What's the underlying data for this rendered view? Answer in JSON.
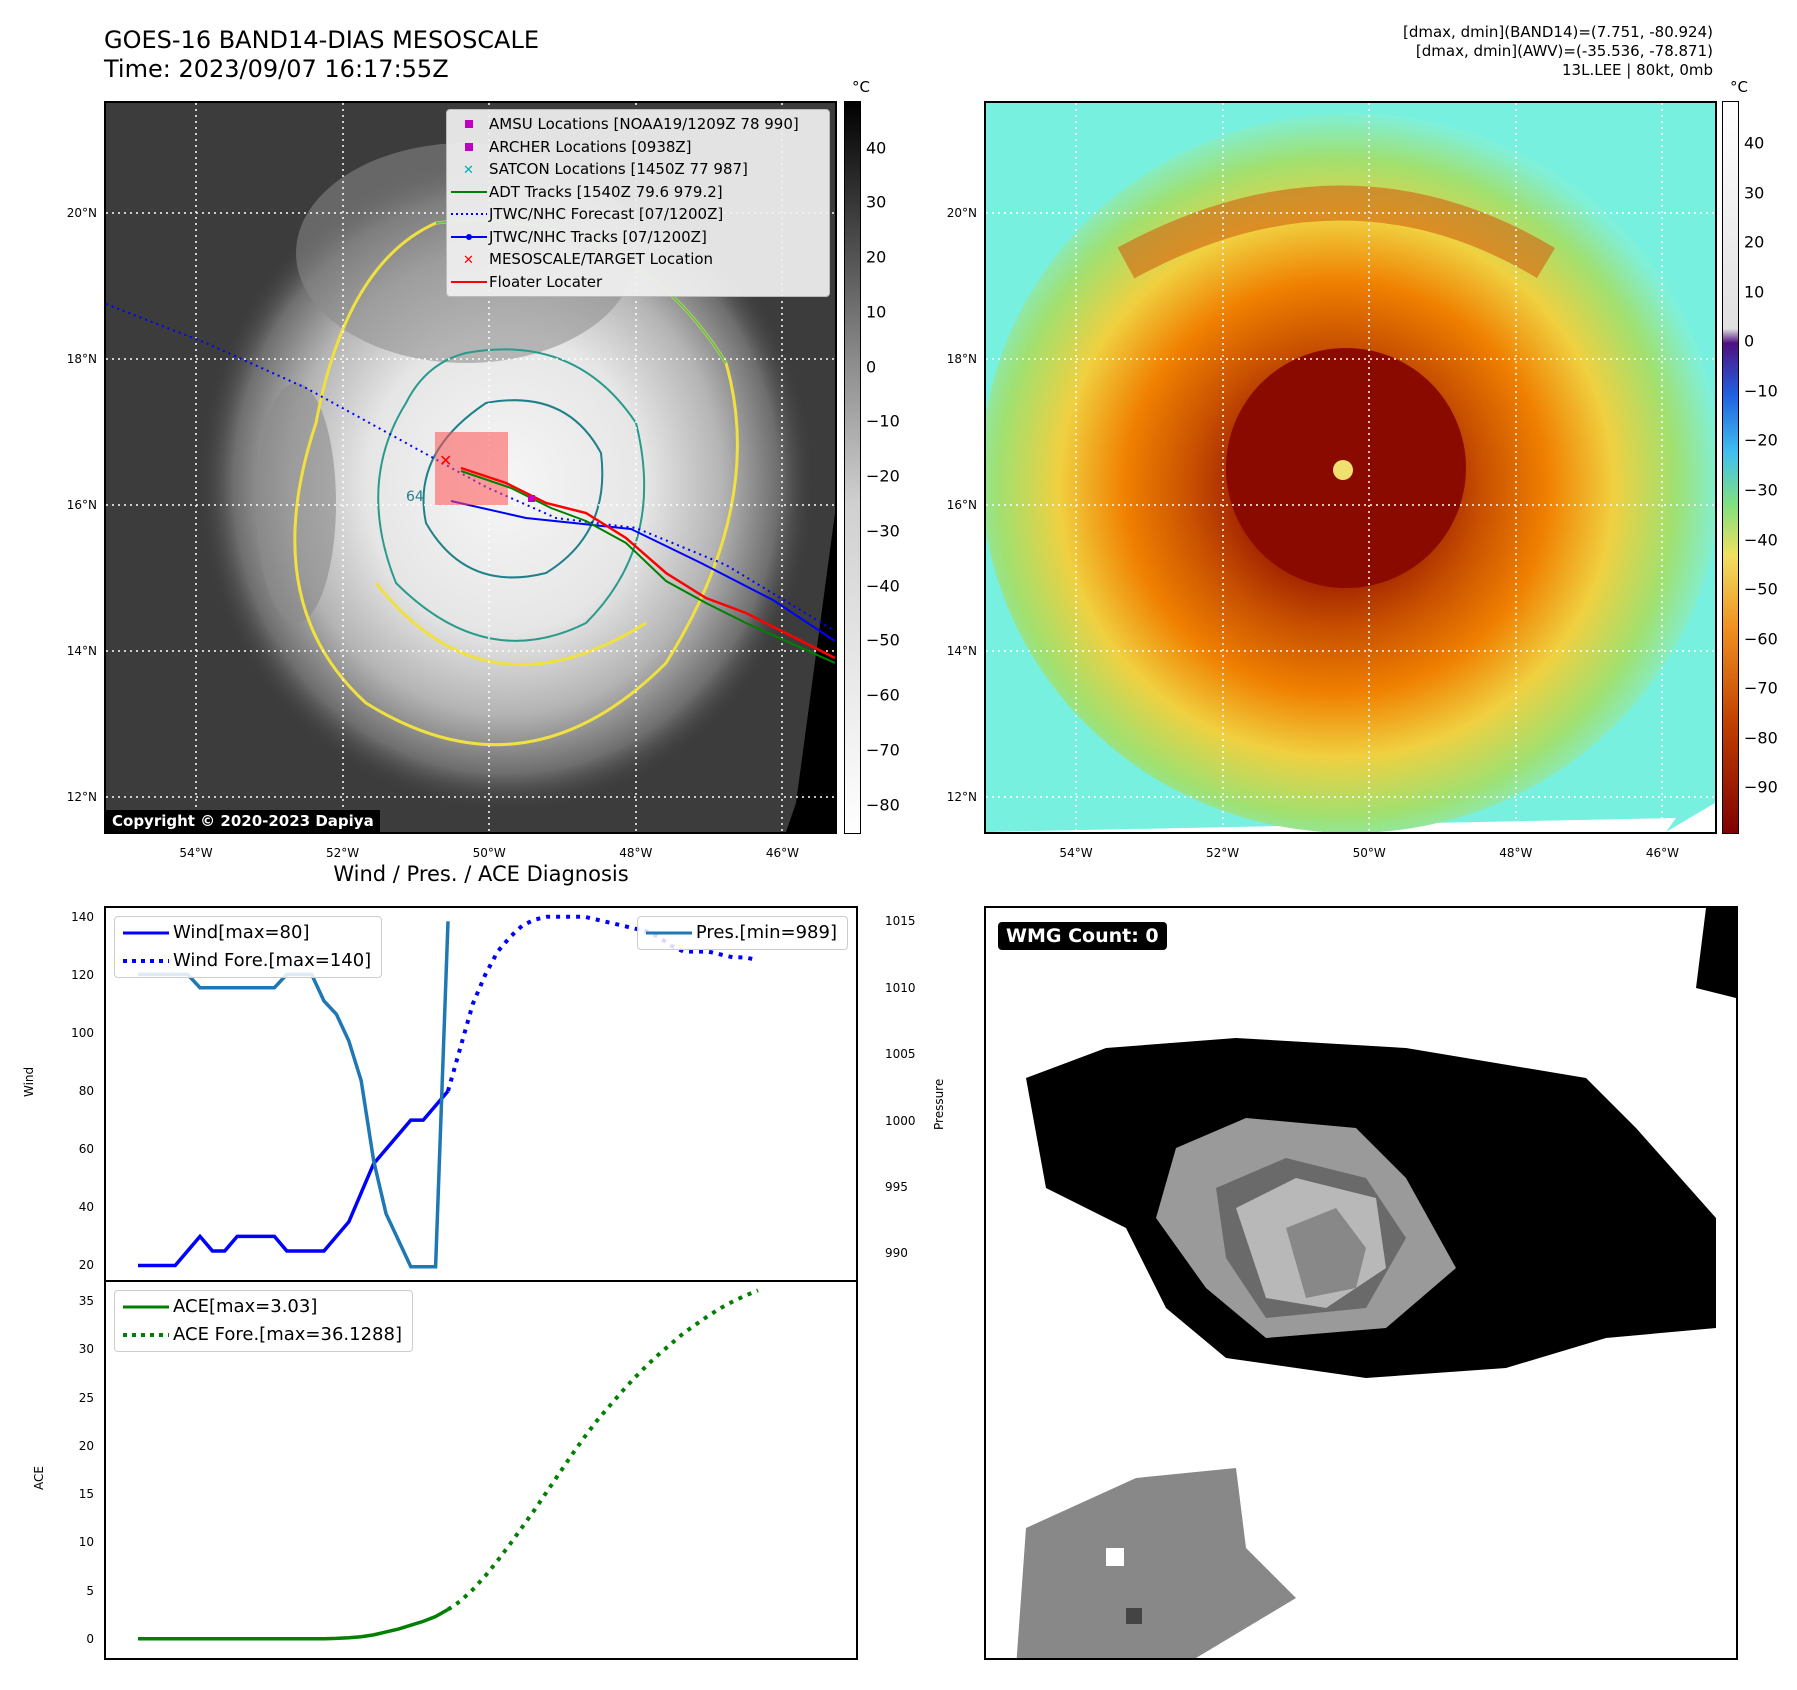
{
  "header": {
    "title_line1": "GOES-16 BAND14-DIAS MESOSCALE",
    "title_line2": "Time: 2023/09/07 16:17:55Z",
    "stats_line1": "[dmax, dmin](BAND14)=(7.751, -80.924)",
    "stats_line2": "[dmax, dmin](AWV)=(-35.536, -78.871)",
    "stats_line3": "13L.LEE | 80kt, 0mb"
  },
  "map": {
    "lon_ticks": [
      "54°W",
      "52°W",
      "50°W",
      "48°W",
      "46°W"
    ],
    "lat_ticks": [
      "20°N",
      "18°N",
      "16°N",
      "14°N",
      "12°N"
    ],
    "lon_values": [
      -54,
      -52,
      -50,
      -48,
      -46
    ],
    "lat_values": [
      20,
      18,
      16,
      14,
      12
    ],
    "copyright": "Copyright © 2020-2023 Dapiya",
    "contour_label": "64",
    "legend": [
      {
        "label": "AMSU Locations [NOAA19/1209Z 78 990]",
        "symbol": "square",
        "color": "#c000c0"
      },
      {
        "label": "ARCHER Locations [0938Z]",
        "symbol": "square",
        "color": "#c000c0"
      },
      {
        "label": "SATCON Locations [1450Z 77 987]",
        "symbol": "x",
        "color": "#00b0b0"
      },
      {
        "label": "ADT Tracks [1540Z 79.6 979.2]",
        "symbol": "line",
        "color": "#008000"
      },
      {
        "label": "JTWC/NHC Forecast [07/1200Z]",
        "symbol": "dotted",
        "color": "#0000ff"
      },
      {
        "label": "JTWC/NHC Tracks [07/1200Z]",
        "symbol": "line-dot",
        "color": "#0000ff"
      },
      {
        "label": "MESOSCALE/TARGET Location",
        "symbol": "x",
        "color": "#ff0000"
      },
      {
        "label": "Floater Locater",
        "symbol": "line",
        "color": "#ff0000"
      }
    ]
  },
  "colorbar_left": {
    "unit": "°C",
    "ticks": [
      "40",
      "30",
      "20",
      "10",
      "0",
      "−10",
      "−20",
      "−30",
      "−40",
      "−50",
      "−60",
      "−70",
      "−80"
    ],
    "values": [
      40,
      30,
      20,
      10,
      0,
      -10,
      -20,
      -30,
      -40,
      -50,
      -60,
      -70,
      -80
    ]
  },
  "colorbar_right": {
    "unit": "°C",
    "ticks": [
      "40",
      "30",
      "20",
      "10",
      "0",
      "−10",
      "−20",
      "−30",
      "−40",
      "−50",
      "−60",
      "−70",
      "−80",
      "−90"
    ],
    "values": [
      40,
      30,
      20,
      10,
      0,
      -10,
      -20,
      -30,
      -40,
      -50,
      -60,
      -70,
      -80,
      -90
    ]
  },
  "diagnosis": {
    "title": "Wind / Pres. / ACE Diagnosis",
    "wind_ylabel": "Wind",
    "pres_ylabel": "Pressure",
    "ace_ylabel": "ACE",
    "wind_ticks": [
      "140",
      "120",
      "100",
      "80",
      "60",
      "40",
      "20"
    ],
    "pres_ticks": [
      "1015",
      "1010",
      "1005",
      "1000",
      "995",
      "990"
    ],
    "ace_ticks": [
      "35",
      "30",
      "25",
      "20",
      "15",
      "10",
      "5",
      "0"
    ],
    "legend_wind": "Wind[max=80]",
    "legend_wind_fore": "Wind Fore.[max=140]",
    "legend_pres": "Pres.[min=989]",
    "legend_ace": "ACE[max=3.03]",
    "legend_ace_fore": "ACE Fore.[max=36.1288]"
  },
  "wmg": {
    "badge": "WMG Count: 0"
  },
  "chart_data": [
    {
      "type": "line",
      "title": "Wind / Pres. / ACE Diagnosis",
      "ylabel": "Wind",
      "ylim": [
        15,
        143
      ],
      "series": [
        {
          "name": "Wind[max=80]",
          "color": "#0000ff",
          "style": "solid",
          "x": [
            0,
            1,
            2,
            3,
            4,
            5,
            6,
            7,
            8,
            9,
            10,
            11,
            12,
            13,
            14,
            15,
            16,
            17,
            18,
            19,
            20,
            21,
            22,
            23,
            24,
            25
          ],
          "values": [
            20,
            20,
            20,
            20,
            25,
            30,
            25,
            25,
            30,
            30,
            30,
            30,
            25,
            25,
            25,
            25,
            30,
            35,
            45,
            55,
            60,
            65,
            70,
            70,
            75,
            80
          ]
        },
        {
          "name": "Wind Fore.[max=140]",
          "color": "#0000ff",
          "style": "dotted",
          "x": [
            25,
            26,
            27,
            28,
            29,
            30,
            31,
            32,
            33,
            34,
            35,
            36,
            37,
            38,
            39,
            40,
            41,
            42,
            43,
            44,
            45,
            46,
            47,
            48,
            49,
            50
          ],
          "values": [
            80,
            95,
            110,
            120,
            128,
            133,
            137,
            139,
            140,
            140,
            140,
            140,
            139,
            138,
            137,
            136,
            135,
            133,
            130,
            128,
            128,
            128,
            127,
            126,
            126,
            125
          ]
        }
      ]
    },
    {
      "type": "line",
      "ylabel": "Pressure",
      "ylim": [
        988,
        1016
      ],
      "series": [
        {
          "name": "Pres.[min=989]",
          "color": "#1f77b4",
          "style": "solid",
          "x": [
            0,
            1,
            2,
            3,
            4,
            5,
            6,
            7,
            8,
            9,
            10,
            11,
            12,
            13,
            14,
            15,
            16,
            17,
            18,
            19,
            20,
            21,
            22,
            23,
            24,
            25
          ],
          "values": [
            1011,
            1011,
            1011,
            1011,
            1011,
            1010,
            1010,
            1010,
            1010,
            1010,
            1010,
            1010,
            1011,
            1011,
            1011,
            1009,
            1008,
            1006,
            1003,
            997,
            993,
            991,
            989,
            989,
            989,
            1015
          ]
        }
      ]
    },
    {
      "type": "line",
      "ylabel": "ACE",
      "ylim": [
        -2,
        37
      ],
      "series": [
        {
          "name": "ACE[max=3.03]",
          "color": "#008000",
          "style": "solid",
          "x": [
            0,
            1,
            2,
            3,
            4,
            5,
            6,
            7,
            8,
            9,
            10,
            11,
            12,
            13,
            14,
            15,
            16,
            17,
            18,
            19,
            20,
            21,
            22,
            23,
            24,
            25
          ],
          "values": [
            0,
            0,
            0,
            0,
            0,
            0,
            0,
            0,
            0,
            0,
            0,
            0,
            0,
            0,
            0,
            0,
            0.03,
            0.1,
            0.2,
            0.4,
            0.7,
            1.0,
            1.4,
            1.8,
            2.3,
            3.03
          ]
        },
        {
          "name": "ACE Fore.[max=36.1288]",
          "color": "#008000",
          "style": "dotted",
          "x": [
            25,
            26,
            27,
            28,
            29,
            30,
            31,
            32,
            33,
            34,
            35,
            36,
            37,
            38,
            39,
            40,
            41,
            42,
            43,
            44,
            45,
            46,
            47,
            48,
            49,
            50
          ],
          "values": [
            3.03,
            3.9,
            5.1,
            6.5,
            8.1,
            9.8,
            11.6,
            13.4,
            15.3,
            17.2,
            19.1,
            20.9,
            22.6,
            24.1,
            25.6,
            27.0,
            28.3,
            29.5,
            30.6,
            31.7,
            32.6,
            33.5,
            34.3,
            35.0,
            35.6,
            36.1288
          ]
        }
      ]
    }
  ]
}
